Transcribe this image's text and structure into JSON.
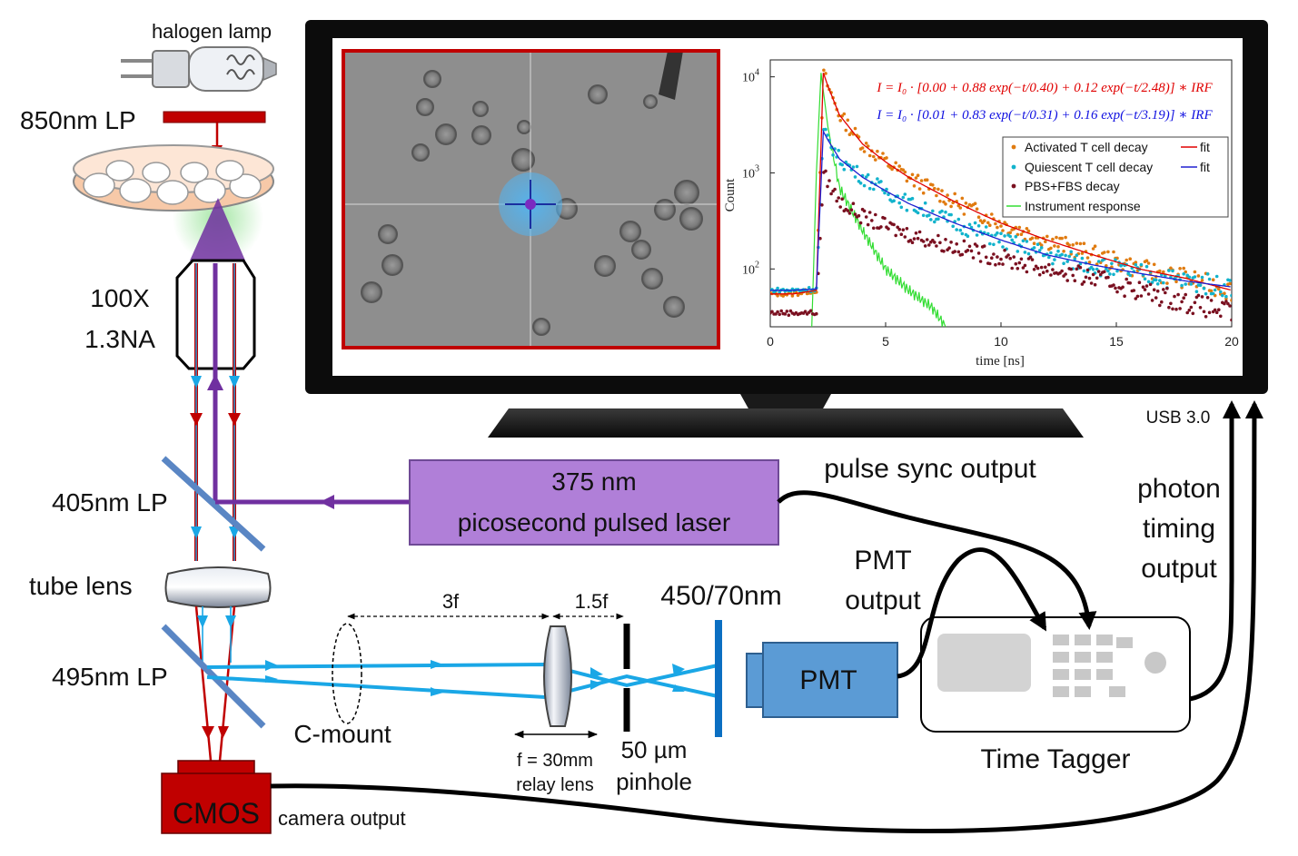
{
  "labels": {
    "halogen_lamp": "halogen lamp",
    "lp_850": "850nm LP",
    "objective_mag": "100X",
    "objective_na": "1.3NA",
    "lp_405": "405nm LP",
    "tube_lens": "tube lens",
    "lp_495": "495nm LP",
    "cmos": "CMOS",
    "camera_output": "camera output",
    "c_mount": "C-mount",
    "dist_3f": "3f",
    "dist_1_5f": "1.5f",
    "relay_lens_1": "f = 30mm",
    "relay_lens_2": "relay lens",
    "pinhole_1": "50 µm",
    "pinhole_2": "pinhole",
    "filter_450": "450/70nm",
    "pmt": "PMT",
    "pmt_output_1": "PMT",
    "pmt_output_2": "output",
    "time_tagger": "Time Tagger",
    "laser_1": "375 nm",
    "laser_2": "picosecond pulsed laser",
    "pulse_sync": "pulse sync output",
    "photon_1": "photon",
    "photon_2": "timing",
    "photon_3": "output",
    "usb": "USB 3.0"
  },
  "colors": {
    "laser_purple": "#7030a0",
    "laser_box": "#b07fd8",
    "red_path": "#c00000",
    "blue_path": "#1aa7e6",
    "pmt_blue": "#5b9bd5",
    "filter_blue": "#0b6fc2",
    "dichroic": "#5a86c4",
    "cmos_red": "#c00000"
  },
  "chart_data": {
    "type": "scatter",
    "xlabel": "time [ns]",
    "ylabel": "Count",
    "xlim": [
      0,
      20
    ],
    "ylim": [
      25,
      15000
    ],
    "yscale": "log",
    "xticks": [
      "0",
      "5",
      "10",
      "15",
      "20"
    ],
    "yticks": [
      {
        "value": 10000,
        "base": "10",
        "exp": "4"
      },
      {
        "value": 1000,
        "base": "10",
        "exp": "3"
      },
      {
        "value": 100,
        "base": "10",
        "exp": "2"
      }
    ],
    "equations": [
      {
        "text": "I = I₀ · [0.00 + 0.88 exp(−t/0.40) + 0.12 exp(−t/2.48)] ∗ IRF",
        "color": "#e00000"
      },
      {
        "text": "I = I₀ · [0.01 + 0.83 exp(−t/0.31) + 0.16 exp(−t/3.19)] ∗ IRF",
        "color": "#1010e0"
      }
    ],
    "legend_position": "top-right",
    "legend": [
      {
        "label": "Activated T cell decay",
        "marker": "dot",
        "color": "#e07b10",
        "fit_label": "fit",
        "fit_color": "#e00000"
      },
      {
        "label": "Quiescent T cell decay",
        "marker": "dot",
        "color": "#12b3cc",
        "fit_label": "fit",
        "fit_color": "#2020d0"
      },
      {
        "label": "PBS+FBS decay",
        "marker": "dot",
        "color": "#7a1020"
      },
      {
        "label": "Instrument response",
        "marker": "line",
        "color": "#33dd33"
      }
    ],
    "series": [
      {
        "name": "Activated T cell decay",
        "x": [
          0,
          1,
          2,
          2.3,
          2.5,
          3,
          4,
          5,
          6,
          8,
          10,
          12,
          14,
          16,
          18,
          20
        ],
        "y": [
          55,
          55,
          60,
          11000,
          8000,
          4000,
          2000,
          1300,
          900,
          500,
          300,
          200,
          140,
          100,
          80,
          60
        ]
      },
      {
        "name": "Quiescent T cell decay",
        "x": [
          0,
          1,
          2,
          2.3,
          2.5,
          3,
          4,
          5,
          6,
          8,
          10,
          12,
          14,
          16,
          18,
          20
        ],
        "y": [
          60,
          60,
          62,
          2700,
          2200,
          1400,
          900,
          650,
          480,
          300,
          200,
          140,
          110,
          90,
          75,
          65
        ]
      },
      {
        "name": "PBS+FBS decay",
        "x": [
          0,
          1,
          2,
          2.3,
          2.5,
          3,
          4,
          5,
          6,
          8,
          10,
          12,
          14,
          16,
          18,
          20
        ],
        "y": [
          35,
          35,
          35,
          1000,
          800,
          500,
          350,
          280,
          230,
          170,
          130,
          100,
          80,
          60,
          45,
          35
        ]
      },
      {
        "name": "Instrument response",
        "x": [
          1.8,
          2,
          2.2,
          2.5,
          3,
          4,
          5,
          6,
          7,
          7.6
        ],
        "y": [
          25,
          1000,
          11000,
          3000,
          700,
          250,
          100,
          60,
          40,
          25
        ]
      }
    ],
    "fit_series": [
      {
        "x": [
          0,
          1,
          2,
          2.3,
          2.5,
          3,
          4,
          5,
          6,
          8,
          10,
          12,
          14,
          16,
          18,
          20
        ],
        "y": [
          55,
          55,
          60,
          11000,
          8000,
          4000,
          2000,
          1300,
          900,
          500,
          300,
          200,
          140,
          100,
          80,
          60
        ]
      },
      {
        "x": [
          0,
          1,
          2,
          2.3,
          2.5,
          3,
          4,
          5,
          6,
          8,
          10,
          12,
          14,
          16,
          18,
          20
        ],
        "y": [
          60,
          60,
          62,
          2700,
          2200,
          1400,
          900,
          650,
          480,
          300,
          200,
          140,
          110,
          90,
          75,
          65
        ]
      }
    ]
  }
}
